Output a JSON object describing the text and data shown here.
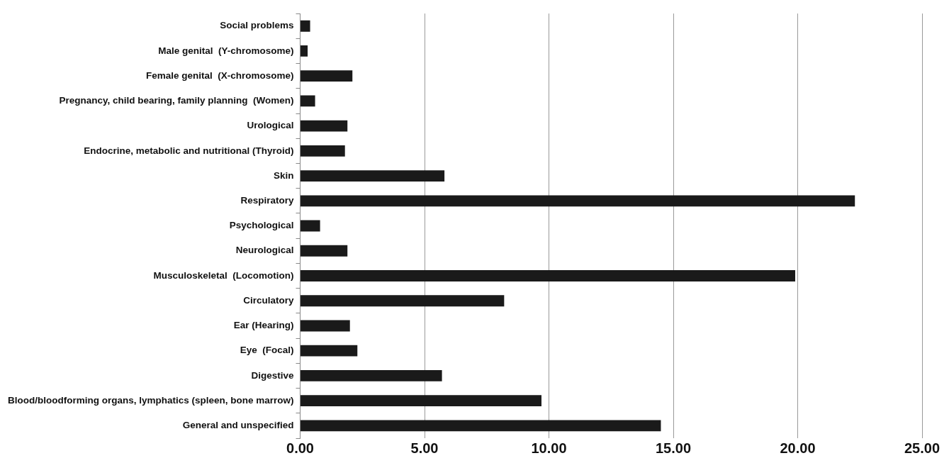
{
  "chart_data": {
    "type": "bar",
    "orientation": "horizontal",
    "categories": [
      "Social problems",
      "Male genital  (Y-chromosome)",
      "Female genital  (X-chromosome)",
      "Pregnancy, child bearing, family planning  (Women)",
      "Urological",
      "Endocrine, metabolic and nutritional (Thyroid)",
      "Skin",
      "Respiratory",
      "Psychological",
      "Neurological",
      "Musculoskeletal  (Locomotion)",
      "Circulatory",
      "Ear (Hearing)",
      "Eye  (Focal)",
      "Digestive",
      "Blood/bloodforming organs, lymphatics (spleen, bone marrow)",
      "General and unspecified"
    ],
    "values": [
      0.4,
      0.3,
      2.1,
      0.6,
      1.9,
      1.8,
      5.8,
      22.3,
      0.8,
      1.9,
      19.9,
      8.2,
      2.0,
      2.3,
      5.7,
      9.7,
      14.5
    ],
    "color": "#1a1a1a",
    "xlim": [
      0,
      25
    ],
    "xticks": [
      {
        "value": 0,
        "label": "0.00"
      },
      {
        "value": 5,
        "label": "5.00"
      },
      {
        "value": 10,
        "label": "10.00"
      },
      {
        "value": 15,
        "label": "15.00"
      },
      {
        "value": 20,
        "label": "20.00"
      },
      {
        "value": 25,
        "label": "25.00"
      }
    ],
    "grid": "x",
    "legend": false
  }
}
